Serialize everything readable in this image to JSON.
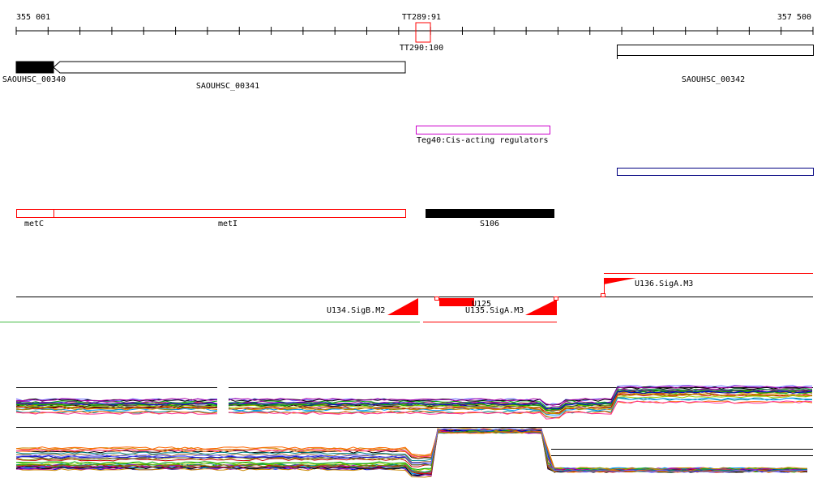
{
  "coordinates": {
    "start": "355 001",
    "end": "357 500"
  },
  "terminators": {
    "upper": "TT289:91",
    "lower": "TT290:100"
  },
  "genes": [
    {
      "label": "SAOUHSC_00340",
      "strand": "+",
      "fill": "#000000"
    },
    {
      "label": "SAOUHSC_00341",
      "strand": "-",
      "fill": "#ffffff"
    },
    {
      "label": "SAOUHSC_00342",
      "strand": "+",
      "fill": "#ffffff"
    }
  ],
  "regulators": {
    "label": "Teg40:Cis-acting regulators",
    "color": "#cc00cc"
  },
  "operon_bar_color": "#000080",
  "transcripts": [
    {
      "label": "metC",
      "color": "#ff0000"
    },
    {
      "label": "metI",
      "color": "#ff0000"
    },
    {
      "label": "S106",
      "color": "#000000"
    }
  ],
  "promoters": [
    {
      "label": "U134.SigB.M2"
    },
    {
      "label": "U135.SigA.M3"
    },
    {
      "label": "U136.SigA.M3"
    },
    {
      "label": "U125"
    }
  ],
  "colors": {
    "promoter": "#ff0000",
    "baseline": "#000000",
    "green_track": "#44bb44"
  }
}
